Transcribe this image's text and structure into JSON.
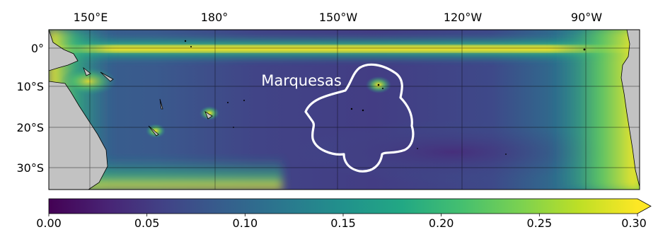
{
  "map": {
    "lon_labels": [
      "150°E",
      "180°",
      "150°W",
      "120°W",
      "90°W"
    ],
    "lat_labels": [
      "0°",
      "10°S",
      "20°S",
      "30°S"
    ],
    "region_label": "Marquesas"
  },
  "colorbar": {
    "ticks": [
      "0.00",
      "0.05",
      "0.10",
      "0.15",
      "0.20",
      "0.25",
      "0.30"
    ],
    "range": [
      0.0,
      0.3
    ],
    "extend": "max",
    "colormap": "viridis"
  },
  "colors": {
    "land": "#c2c2c2",
    "outline": "#ffffff",
    "deep": "#3f3d8a",
    "mid": "#2c6f8e",
    "high": "#fde725"
  }
}
